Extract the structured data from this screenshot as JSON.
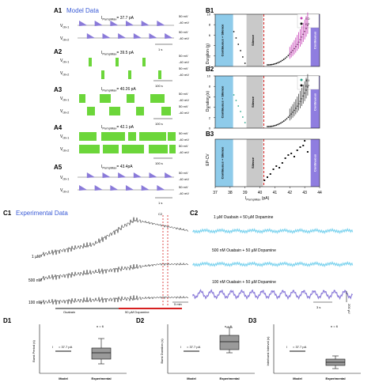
{
  "panels": {
    "A1": {
      "label": "A1",
      "title": "Model Data",
      "current": "I",
      "current_sub": "PumpMax",
      "current_val": "= 37.7 pA",
      "v1": "V",
      "v1_sub": "dn-1",
      "v2": "V",
      "v2_sub": "dn-2",
      "scale_v1": "50 mV",
      "scale_v1b": "-40 mV",
      "scale_v2": "50 mV",
      "scale_v2b": "-40 mV",
      "time": "1 s"
    },
    "A2": {
      "label": "A2",
      "current": "I",
      "current_sub": "PumpMax",
      "current_val": "= 39.5 pA",
      "v1": "V",
      "v1_sub": "dn-1",
      "v2": "V",
      "v2_sub": "dn-2",
      "scale_v1": "50 mV",
      "scale_v1b": "-40 mV",
      "scale_v2": "50 mV",
      "scale_v2b": "-40 mV",
      "time": "100 s"
    },
    "A3": {
      "label": "A3",
      "current": "I",
      "current_sub": "PumpMax",
      "current_val": "= 40.26 pA",
      "v1": "V",
      "v1_sub": "dn-1",
      "v2": "V",
      "v2_sub": "dn-2",
      "scale_v1": "50 mV",
      "scale_v1b": "-40 mV",
      "scale_v2": "50 mV",
      "scale_v2b": "-40 mV",
      "time": "100 s"
    },
    "A4": {
      "label": "A4",
      "current": "I",
      "current_sub": "PumpMax",
      "current_val": "= 42.1 pA",
      "v1": "V",
      "v1_sub": "dn-1",
      "v2": "V",
      "v2_sub": "dn-2",
      "scale_v1": "50 mV",
      "scale_v1b": "-40 mV",
      "scale_v2": "50 mV",
      "scale_v2b": "-40 mV",
      "time": "100 s"
    },
    "A5": {
      "label": "A5",
      "current": "I",
      "current_sub": "PumpMax",
      "current_val": "= 43.4pA",
      "v1": "V",
      "v1_sub": "dn-1",
      "v2": "V",
      "v2_sub": "dn-2",
      "scale_v1": "50 mV",
      "scale_v1b": "-40 mV",
      "scale_v2": "50 mV",
      "scale_v2b": "-40 mV",
      "time": "1 s"
    },
    "B1": {
      "label": "B1",
      "ylabel": "Duration (s)",
      "legend_ed": "ED",
      "legend_ep": "EP",
      "band_left": "Continuous + Silence",
      "band_mid": "Silence",
      "band_right": "Continuous",
      "yticks": [
        "0",
        "2",
        "4",
        "6",
        "8",
        "10"
      ]
    },
    "B2": {
      "label": "B2",
      "ylabel": "Duration (s)",
      "legend_iei": "IEI",
      "legend_ep": "EP",
      "band_left": "Continuous + Silence",
      "band_mid": "Silence",
      "band_right": "Continuous",
      "yticks": [
        "0",
        "2",
        "4",
        "6",
        "8",
        "10"
      ]
    },
    "B3": {
      "label": "B3",
      "ylabel": "EP-CV",
      "band_left": "Continuous + Silence",
      "band_mid": "Silence",
      "band_right": "Continuous",
      "xticks": [
        "37",
        "38",
        "39",
        "40",
        "41",
        "42",
        "43",
        "44"
      ],
      "xlabel": "I",
      "xlabel_sub": "PumpMax",
      "xlabel_unit": " (pA)"
    },
    "C1": {
      "label": "C1",
      "title": "Experimental Data",
      "c2mark": "C2",
      "trace1": "1 µM",
      "trace2": "500 nM",
      "trace3": "100 nM",
      "scale": "5 min",
      "drug1": "Ouabain",
      "drug2": "50 µM Dopamine"
    },
    "C2": {
      "label": "C2",
      "t1": "1 µM Ouabain + 50 µM Dopamine",
      "t2": "500 nM Ouabain + 50 µM Dopamine",
      "t3": "100 nM Ouabain + 50 µM Dopamine",
      "time": "3 s",
      "amp": "200 µV"
    },
    "D1": {
      "label": "D1",
      "ylabel": "Burst Period (s)",
      "n": "n = 6",
      "note": "I",
      "note_val": "= 37.7 pA",
      "cat1": "Model",
      "cat2": "Experimental"
    },
    "D2": {
      "label": "D2",
      "ylabel": "Burst Duration (s)",
      "n": "n = 6",
      "note": "I",
      "note_val": "= 37.7 pA",
      "cat1": "Model",
      "cat2": "Experimental"
    },
    "D3": {
      "label": "D3",
      "ylabel": "Interburst Interval (s)",
      "n": "n = 6",
      "note": "I",
      "note_val": "= 37.7 pA",
      "cat1": "Model",
      "cat2": "Experimental"
    }
  },
  "colors": {
    "blue_band": "#8ecbea",
    "gray_band": "#c9c9c9",
    "purple_band": "#8f7de0",
    "red_dash": "#d62020",
    "green": "#6cd63a",
    "purple_trace": "#8a7ad9",
    "cyan_trace": "#7fd4ef",
    "ed_color": "#c43ab4",
    "iei_color": "#2aa58a",
    "title_blue": "#3a5bd6"
  }
}
